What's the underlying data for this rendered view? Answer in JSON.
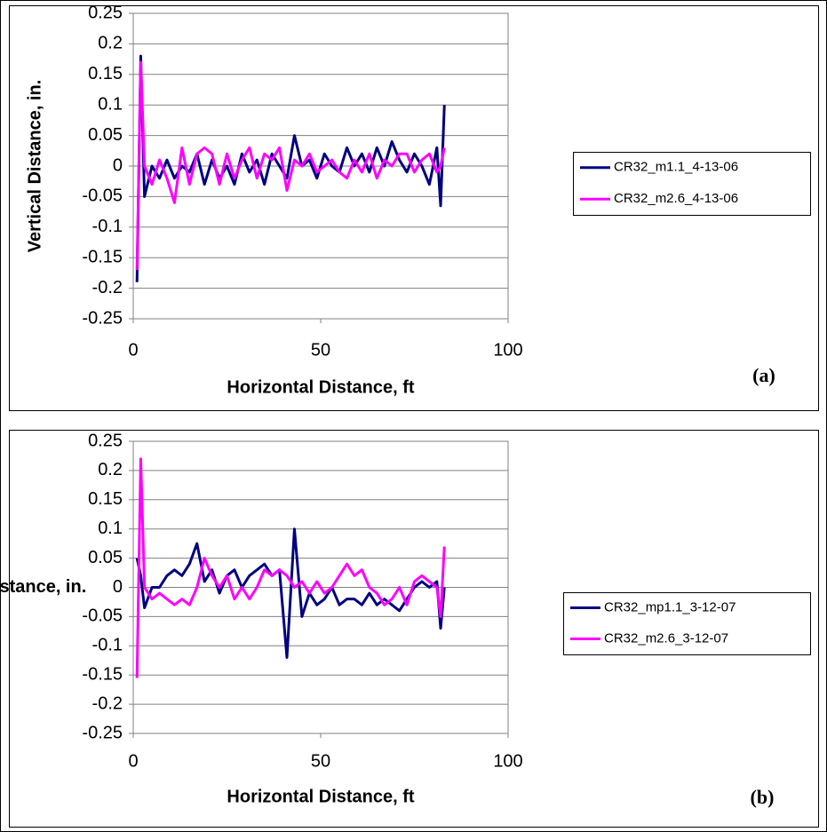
{
  "chart_data": [
    {
      "type": "line",
      "xlabel": "Horizontal Distance, ft",
      "ylabel": "Vertical Distance, in.",
      "annotation": "(a)",
      "x": [
        1,
        2,
        3,
        5,
        7,
        9,
        11,
        13,
        15,
        17,
        19,
        21,
        23,
        25,
        27,
        29,
        31,
        33,
        35,
        37,
        39,
        41,
        43,
        45,
        47,
        49,
        51,
        53,
        55,
        57,
        59,
        61,
        63,
        65,
        67,
        69,
        71,
        73,
        75,
        77,
        79,
        81,
        82,
        83
      ],
      "series": [
        {
          "name": "CR32_m1.1_4-13-06",
          "color": "#000080",
          "values": [
            -0.19,
            0.18,
            -0.05,
            0.0,
            -0.02,
            0.01,
            -0.02,
            0.0,
            -0.01,
            0.02,
            -0.03,
            0.01,
            -0.02,
            0.0,
            -0.03,
            0.02,
            -0.01,
            0.01,
            -0.03,
            0.02,
            0.0,
            -0.02,
            0.05,
            0.0,
            0.01,
            -0.02,
            0.02,
            0.0,
            -0.01,
            0.03,
            0.0,
            0.02,
            -0.01,
            0.03,
            0.0,
            0.04,
            0.01,
            -0.01,
            0.02,
            0.0,
            -0.03,
            0.03,
            -0.065,
            0.1
          ]
        },
        {
          "name": "CR32_m2.6_4-13-06",
          "color": "#ff00ff",
          "values": [
            -0.17,
            0.17,
            0.0,
            -0.03,
            0.01,
            -0.02,
            -0.06,
            0.03,
            -0.03,
            0.02,
            0.03,
            0.02,
            -0.03,
            0.02,
            -0.02,
            0.01,
            0.03,
            -0.02,
            0.02,
            0.01,
            0.03,
            -0.04,
            0.01,
            0.0,
            0.02,
            -0.01,
            0.0,
            0.01,
            -0.01,
            -0.02,
            0.01,
            -0.01,
            0.02,
            -0.02,
            0.01,
            0.0,
            0.02,
            0.02,
            -0.01,
            0.01,
            0.02,
            -0.01,
            0.0,
            0.03
          ]
        }
      ],
      "xlim": [
        0,
        100
      ],
      "xticks": [
        0,
        50,
        100
      ],
      "ylim": [
        -0.25,
        0.25
      ],
      "yticks": [
        -0.25,
        -0.2,
        -0.15,
        -0.1,
        -0.05,
        0,
        0.05,
        0.1,
        0.15,
        0.2,
        0.25
      ],
      "grid": true,
      "legend": "right"
    },
    {
      "type": "line",
      "xlabel": "Horizontal Distance, ft",
      "ylabel": "Vertical Distance, in.",
      "annotation": "(b)",
      "x": [
        1,
        2,
        3,
        5,
        7,
        9,
        11,
        13,
        15,
        17,
        19,
        21,
        23,
        25,
        27,
        29,
        31,
        33,
        35,
        37,
        39,
        41,
        43,
        45,
        47,
        49,
        51,
        53,
        55,
        57,
        59,
        61,
        63,
        65,
        67,
        69,
        71,
        73,
        75,
        77,
        79,
        81,
        82,
        83
      ],
      "series": [
        {
          "name": "CR32_mp1.1_3-12-07",
          "color": "#000080",
          "values": [
            0.05,
            0.02,
            -0.035,
            0.0,
            0.0,
            0.02,
            0.03,
            0.02,
            0.04,
            0.075,
            0.01,
            0.03,
            -0.01,
            0.02,
            0.03,
            0.0,
            0.02,
            0.03,
            0.04,
            0.02,
            0.03,
            -0.12,
            0.1,
            -0.05,
            -0.01,
            -0.03,
            -0.02,
            0.0,
            -0.03,
            -0.02,
            -0.02,
            -0.03,
            -0.01,
            -0.03,
            -0.02,
            -0.03,
            -0.04,
            -0.02,
            0.0,
            0.01,
            0.0,
            0.01,
            -0.07,
            0.0
          ]
        },
        {
          "name": "CR32_m2.6_3-12-07",
          "color": "#ff00ff",
          "values": [
            -0.155,
            0.22,
            0.0,
            -0.02,
            -0.01,
            -0.02,
            -0.03,
            -0.02,
            -0.03,
            0.0,
            0.05,
            0.02,
            0.0,
            0.02,
            -0.02,
            0.0,
            -0.02,
            0.0,
            0.03,
            0.02,
            0.03,
            0.02,
            0.0,
            0.01,
            -0.01,
            0.01,
            -0.01,
            0.0,
            0.02,
            0.04,
            0.02,
            0.03,
            0.0,
            -0.01,
            -0.03,
            -0.02,
            0.0,
            -0.03,
            0.01,
            0.02,
            0.01,
            0.0,
            -0.05,
            0.07
          ]
        }
      ],
      "xlim": [
        0,
        100
      ],
      "xticks": [
        0,
        50,
        100
      ],
      "ylim": [
        -0.25,
        0.25
      ],
      "yticks": [
        -0.25,
        -0.2,
        -0.15,
        -0.1,
        -0.05,
        0,
        0.05,
        0.1,
        0.15,
        0.2,
        0.25
      ],
      "grid": true,
      "legend": "right"
    }
  ]
}
